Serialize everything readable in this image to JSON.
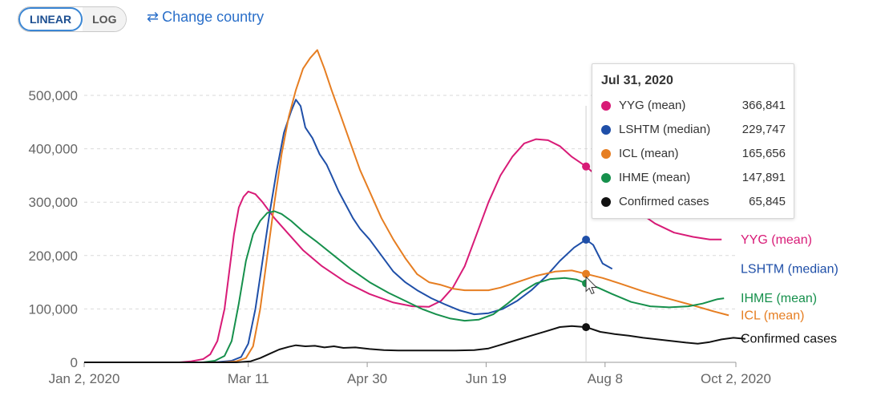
{
  "controls": {
    "linear_label": "LINEAR",
    "log_label": "LOG",
    "change_country_label": "Change country",
    "active_scale": "linear"
  },
  "tooltip": {
    "date": "Jul 31, 2020",
    "rows": [
      {
        "name": "YYG (mean)",
        "value": "366,841",
        "color": "#d81b77"
      },
      {
        "name": "LSHTM (median)",
        "value": "229,747",
        "color": "#1f4fa8"
      },
      {
        "name": "ICL (mean)",
        "value": "165,656",
        "color": "#e67e22"
      },
      {
        "name": "IHME (mean)",
        "value": "147,891",
        "color": "#16904c"
      },
      {
        "name": "Confirmed cases",
        "value": "65,845",
        "color": "#111111"
      }
    ]
  },
  "chart_data": {
    "type": "line",
    "x_ticks": [
      "Jan 2, 2020",
      "Mar 11",
      "Apr 30",
      "Jun 19",
      "Aug 8",
      "Oct 2, 2020"
    ],
    "x_tick_days": [
      0,
      69,
      119,
      169,
      219,
      274
    ],
    "y_ticks": [
      "0",
      "100,000",
      "200,000",
      "300,000",
      "400,000",
      "500,000"
    ],
    "xlim_days": [
      0,
      274
    ],
    "ylim": [
      0,
      500000
    ],
    "hover_day": 211,
    "grid": "horizontal dashed",
    "series": [
      {
        "name": "YYG (mean)",
        "color": "#d81b77",
        "points": [
          [
            40,
            0
          ],
          [
            45,
            2000
          ],
          [
            50,
            6000
          ],
          [
            53,
            15000
          ],
          [
            56,
            40000
          ],
          [
            59,
            100000
          ],
          [
            61,
            170000
          ],
          [
            63,
            240000
          ],
          [
            65,
            290000
          ],
          [
            67,
            310000
          ],
          [
            69,
            320000
          ],
          [
            72,
            315000
          ],
          [
            75,
            300000
          ],
          [
            80,
            270000
          ],
          [
            86,
            240000
          ],
          [
            92,
            210000
          ],
          [
            100,
            180000
          ],
          [
            110,
            150000
          ],
          [
            120,
            128000
          ],
          [
            130,
            112000
          ],
          [
            138,
            105000
          ],
          [
            145,
            104000
          ],
          [
            150,
            115000
          ],
          [
            155,
            140000
          ],
          [
            160,
            180000
          ],
          [
            165,
            240000
          ],
          [
            170,
            300000
          ],
          [
            175,
            350000
          ],
          [
            180,
            385000
          ],
          [
            185,
            410000
          ],
          [
            190,
            418000
          ],
          [
            195,
            416000
          ],
          [
            200,
            405000
          ],
          [
            205,
            385000
          ],
          [
            211,
            366841
          ],
          [
            218,
            340000
          ],
          [
            225,
            310000
          ],
          [
            232,
            285000
          ],
          [
            240,
            260000
          ],
          [
            248,
            243000
          ],
          [
            256,
            235000
          ],
          [
            263,
            230000
          ],
          [
            268,
            230000
          ]
        ]
      },
      {
        "name": "LSHTM (median)",
        "color": "#1f4fa8",
        "points": [
          [
            55,
            0
          ],
          [
            62,
            3000
          ],
          [
            66,
            10000
          ],
          [
            69,
            35000
          ],
          [
            72,
            100000
          ],
          [
            75,
            190000
          ],
          [
            78,
            280000
          ],
          [
            81,
            360000
          ],
          [
            84,
            430000
          ],
          [
            87,
            470000
          ],
          [
            89,
            492000
          ],
          [
            91,
            480000
          ],
          [
            93,
            440000
          ],
          [
            96,
            420000
          ],
          [
            99,
            390000
          ],
          [
            102,
            370000
          ],
          [
            104,
            350000
          ],
          [
            107,
            320000
          ],
          [
            110,
            295000
          ],
          [
            113,
            270000
          ],
          [
            116,
            250000
          ],
          [
            120,
            230000
          ],
          [
            125,
            200000
          ],
          [
            130,
            170000
          ],
          [
            135,
            150000
          ],
          [
            140,
            135000
          ],
          [
            146,
            120000
          ],
          [
            152,
            108000
          ],
          [
            158,
            97000
          ],
          [
            164,
            90000
          ],
          [
            170,
            92000
          ],
          [
            176,
            100000
          ],
          [
            182,
            115000
          ],
          [
            188,
            135000
          ],
          [
            194,
            160000
          ],
          [
            200,
            190000
          ],
          [
            206,
            215000
          ],
          [
            211,
            229747
          ],
          [
            214,
            220000
          ],
          [
            218,
            185000
          ],
          [
            222,
            175000
          ]
        ]
      },
      {
        "name": "ICL (mean)",
        "color": "#e67e22",
        "points": [
          [
            58,
            0
          ],
          [
            64,
            2000
          ],
          [
            68,
            8000
          ],
          [
            71,
            30000
          ],
          [
            74,
            100000
          ],
          [
            77,
            200000
          ],
          [
            80,
            300000
          ],
          [
            83,
            390000
          ],
          [
            86,
            460000
          ],
          [
            89,
            510000
          ],
          [
            92,
            550000
          ],
          [
            95,
            570000
          ],
          [
            98,
            585000
          ],
          [
            101,
            550000
          ],
          [
            104,
            510000
          ],
          [
            108,
            460000
          ],
          [
            112,
            410000
          ],
          [
            116,
            360000
          ],
          [
            120,
            320000
          ],
          [
            125,
            270000
          ],
          [
            130,
            230000
          ],
          [
            135,
            195000
          ],
          [
            140,
            165000
          ],
          [
            145,
            150000
          ],
          [
            150,
            145000
          ],
          [
            155,
            138000
          ],
          [
            160,
            135000
          ],
          [
            165,
            135000
          ],
          [
            170,
            135000
          ],
          [
            175,
            140000
          ],
          [
            182,
            150000
          ],
          [
            190,
            162000
          ],
          [
            198,
            170000
          ],
          [
            205,
            172000
          ],
          [
            211,
            165656
          ],
          [
            218,
            158000
          ],
          [
            225,
            148000
          ],
          [
            235,
            133000
          ],
          [
            245,
            120000
          ],
          [
            255,
            108000
          ],
          [
            265,
            95000
          ],
          [
            271,
            88000
          ]
        ]
      },
      {
        "name": "IHME (mean)",
        "color": "#16904c",
        "points": [
          [
            50,
            0
          ],
          [
            55,
            3000
          ],
          [
            59,
            12000
          ],
          [
            62,
            40000
          ],
          [
            65,
            110000
          ],
          [
            68,
            190000
          ],
          [
            71,
            240000
          ],
          [
            74,
            265000
          ],
          [
            77,
            280000
          ],
          [
            80,
            283000
          ],
          [
            83,
            278000
          ],
          [
            87,
            265000
          ],
          [
            92,
            245000
          ],
          [
            98,
            225000
          ],
          [
            105,
            200000
          ],
          [
            112,
            175000
          ],
          [
            120,
            150000
          ],
          [
            128,
            130000
          ],
          [
            135,
            115000
          ],
          [
            142,
            100000
          ],
          [
            148,
            90000
          ],
          [
            154,
            82000
          ],
          [
            160,
            78000
          ],
          [
            166,
            80000
          ],
          [
            172,
            90000
          ],
          [
            178,
            110000
          ],
          [
            184,
            132000
          ],
          [
            190,
            148000
          ],
          [
            196,
            156000
          ],
          [
            202,
            158000
          ],
          [
            207,
            155000
          ],
          [
            211,
            147891
          ],
          [
            216,
            140000
          ],
          [
            222,
            128000
          ],
          [
            230,
            113000
          ],
          [
            238,
            105000
          ],
          [
            246,
            103000
          ],
          [
            254,
            105000
          ],
          [
            260,
            110000
          ],
          [
            266,
            118000
          ],
          [
            269,
            120000
          ]
        ]
      },
      {
        "name": "Confirmed cases",
        "color": "#111111",
        "points": [
          [
            0,
            0
          ],
          [
            64,
            0
          ],
          [
            70,
            2000
          ],
          [
            74,
            8000
          ],
          [
            78,
            16000
          ],
          [
            82,
            24000
          ],
          [
            86,
            29000
          ],
          [
            89,
            32000
          ],
          [
            93,
            30000
          ],
          [
            97,
            31000
          ],
          [
            101,
            28000
          ],
          [
            105,
            30000
          ],
          [
            109,
            27000
          ],
          [
            114,
            28000
          ],
          [
            120,
            25000
          ],
          [
            126,
            23000
          ],
          [
            132,
            22000
          ],
          [
            140,
            22000
          ],
          [
            148,
            22000
          ],
          [
            156,
            22000
          ],
          [
            164,
            23000
          ],
          [
            170,
            26000
          ],
          [
            176,
            34000
          ],
          [
            182,
            42000
          ],
          [
            188,
            50000
          ],
          [
            194,
            58000
          ],
          [
            200,
            66000
          ],
          [
            205,
            68000
          ],
          [
            211,
            65845
          ],
          [
            217,
            57000
          ],
          [
            223,
            53000
          ],
          [
            229,
            50000
          ],
          [
            235,
            46000
          ],
          [
            241,
            43000
          ],
          [
            247,
            40000
          ],
          [
            253,
            37000
          ],
          [
            258,
            35000
          ],
          [
            263,
            38000
          ],
          [
            268,
            43000
          ],
          [
            273,
            46000
          ],
          [
            278,
            44000
          ]
        ]
      }
    ],
    "end_labels": [
      {
        "text": "YYG (mean)",
        "color": "#d81b77",
        "y": 230000
      },
      {
        "text": "LSHTM (median)",
        "color": "#1f4fa8",
        "y": 175000
      },
      {
        "text": "IHME (mean)",
        "color": "#16904c",
        "y": 120000
      },
      {
        "text": "ICL (mean)",
        "color": "#e67e22",
        "y": 88000
      },
      {
        "text": "Confirmed cases",
        "color": "#111111",
        "y": 44000
      }
    ]
  }
}
